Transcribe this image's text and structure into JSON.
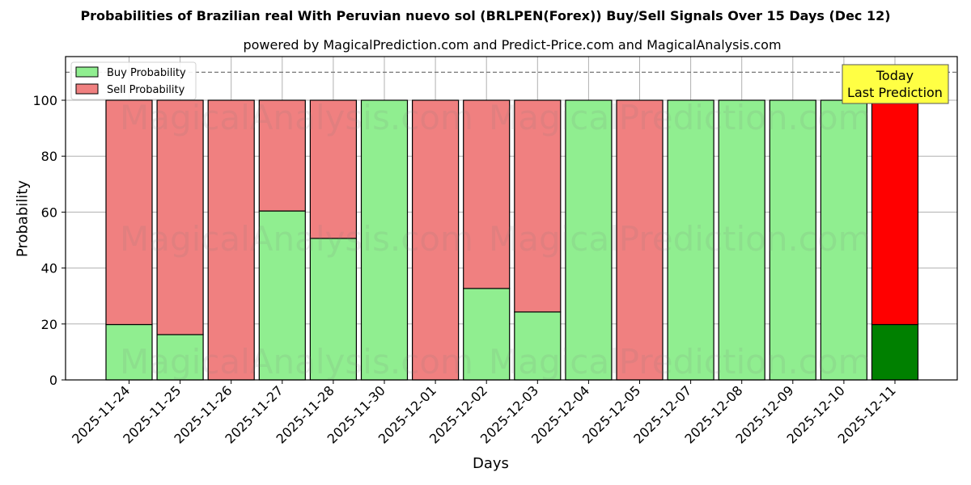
{
  "chart_data": {
    "type": "bar",
    "stacked": true,
    "title": "Probabilities of Brazilian real With Peruvian nuevo sol (BRLPEN(Forex)) Buy/Sell Signals Over 15 Days (Dec 12)",
    "subtitle": "powered by MagicalPrediction.com and Predict-Price.com and MagicalAnalysis.com",
    "xlabel": "Days",
    "ylabel": "Probability",
    "ylim": [
      0,
      115
    ],
    "yticks": [
      0,
      20,
      40,
      60,
      80,
      100
    ],
    "grid": true,
    "reference_line": 110,
    "legend_position": "upper left",
    "categories": [
      "2025-11-24",
      "2025-11-25",
      "2025-11-26",
      "2025-11-27",
      "2025-11-28",
      "2025-11-30",
      "2025-12-01",
      "2025-12-02",
      "2025-12-03",
      "2025-12-04",
      "2025-12-05",
      "2025-12-07",
      "2025-12-08",
      "2025-12-09",
      "2025-12-10",
      "2025-12-11"
    ],
    "series": [
      {
        "name": "Buy Probability",
        "color": "#90ee90",
        "values": [
          19.8,
          16.2,
          0,
          60.4,
          50.6,
          100,
          0,
          32.7,
          24.3,
          100,
          0,
          100,
          100,
          100,
          100,
          19.8
        ]
      },
      {
        "name": "Sell Probability",
        "color": "#f08080",
        "values": [
          80.2,
          83.8,
          100,
          39.6,
          49.4,
          0,
          100,
          67.3,
          75.7,
          0,
          100,
          0,
          0,
          0,
          0,
          80.2
        ]
      }
    ],
    "highlight": {
      "index": 15,
      "buy_color": "#008000",
      "sell_color": "#ff0000"
    },
    "annotation": {
      "line1": "Today",
      "line2": "Last Prediction",
      "bg": "#ffff44"
    },
    "watermarks": [
      "MagicalAnalysis.com",
      "MagicalPrediction.com"
    ]
  }
}
